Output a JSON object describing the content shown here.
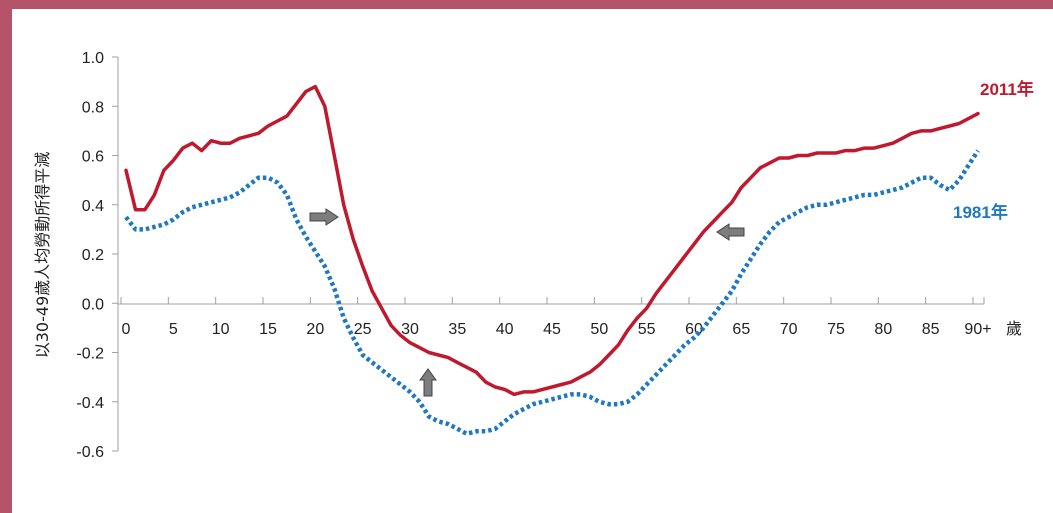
{
  "chart_data": {
    "type": "line",
    "ylabel": "以30-49歲人均勞動所得平減",
    "xlabel": "歲",
    "ylim": [
      -0.6,
      1.0
    ],
    "yticks": [
      "1.0",
      "0.8",
      "0.6",
      "0.4",
      "0.2",
      "0.0",
      "-0.2",
      "-0.4",
      "-0.6"
    ],
    "xticks": [
      "0",
      "5",
      "10",
      "15",
      "20",
      "25",
      "30",
      "35",
      "40",
      "45",
      "50",
      "55",
      "60",
      "65",
      "70",
      "75",
      "80",
      "85",
      "90+"
    ],
    "grid": false,
    "annotations": [
      "arrow-right",
      "arrow-up",
      "arrow-left"
    ],
    "series": [
      {
        "name": "2011年",
        "color": "#c0192e",
        "style": "solid",
        "x": [
          0,
          1,
          2,
          3,
          4,
          5,
          6,
          7,
          8,
          9,
          10,
          11,
          12,
          13,
          14,
          15,
          16,
          17,
          18,
          19,
          20,
          21,
          22,
          23,
          24,
          25,
          26,
          27,
          28,
          29,
          30,
          31,
          32,
          33,
          34,
          35,
          36,
          37,
          38,
          39,
          40,
          41,
          42,
          43,
          44,
          45,
          46,
          47,
          48,
          49,
          50,
          51,
          52,
          53,
          54,
          55,
          56,
          57,
          58,
          59,
          60,
          61,
          62,
          63,
          64,
          65,
          66,
          67,
          68,
          69,
          70,
          71,
          72,
          73,
          74,
          75,
          76,
          77,
          78,
          79,
          80,
          81,
          82,
          83,
          84,
          85,
          86,
          87,
          88,
          89,
          90
        ],
        "values": [
          0.54,
          0.38,
          0.38,
          0.44,
          0.54,
          0.58,
          0.63,
          0.65,
          0.62,
          0.66,
          0.65,
          0.65,
          0.67,
          0.68,
          0.69,
          0.72,
          0.74,
          0.76,
          0.81,
          0.86,
          0.88,
          0.8,
          0.6,
          0.4,
          0.26,
          0.15,
          0.05,
          -0.02,
          -0.09,
          -0.13,
          -0.16,
          -0.18,
          -0.2,
          -0.21,
          -0.22,
          -0.24,
          -0.26,
          -0.28,
          -0.32,
          -0.34,
          -0.35,
          -0.37,
          -0.36,
          -0.36,
          -0.35,
          -0.34,
          -0.33,
          -0.32,
          -0.3,
          -0.28,
          -0.25,
          -0.21,
          -0.17,
          -0.11,
          -0.06,
          -0.02,
          0.04,
          0.09,
          0.14,
          0.19,
          0.24,
          0.29,
          0.33,
          0.37,
          0.41,
          0.47,
          0.51,
          0.55,
          0.57,
          0.59,
          0.59,
          0.6,
          0.6,
          0.61,
          0.61,
          0.61,
          0.62,
          0.62,
          0.63,
          0.63,
          0.64,
          0.65,
          0.67,
          0.69,
          0.7,
          0.7,
          0.71,
          0.72,
          0.73,
          0.75,
          0.77
        ]
      },
      {
        "name": "1981年",
        "color": "#1f78c1",
        "style": "dotted",
        "x": [
          0,
          1,
          2,
          3,
          4,
          5,
          6,
          7,
          8,
          9,
          10,
          11,
          12,
          13,
          14,
          15,
          16,
          17,
          18,
          19,
          20,
          21,
          22,
          23,
          24,
          25,
          26,
          27,
          28,
          29,
          30,
          31,
          32,
          33,
          34,
          35,
          36,
          37,
          38,
          39,
          40,
          41,
          42,
          43,
          44,
          45,
          46,
          47,
          48,
          49,
          50,
          51,
          52,
          53,
          54,
          55,
          56,
          57,
          58,
          59,
          60,
          61,
          62,
          63,
          64,
          65,
          66,
          67,
          68,
          69,
          70,
          71,
          72,
          73,
          74,
          75,
          76,
          77,
          78,
          79,
          80,
          81,
          82,
          83,
          84,
          85,
          86,
          87,
          88,
          89,
          90
        ],
        "values": [
          0.35,
          0.3,
          0.3,
          0.31,
          0.32,
          0.34,
          0.37,
          0.39,
          0.4,
          0.41,
          0.42,
          0.43,
          0.45,
          0.48,
          0.51,
          0.51,
          0.49,
          0.44,
          0.34,
          0.27,
          0.21,
          0.15,
          0.06,
          -0.06,
          -0.14,
          -0.21,
          -0.24,
          -0.27,
          -0.3,
          -0.33,
          -0.36,
          -0.4,
          -0.46,
          -0.48,
          -0.49,
          -0.51,
          -0.53,
          -0.52,
          -0.52,
          -0.51,
          -0.48,
          -0.45,
          -0.43,
          -0.41,
          -0.4,
          -0.39,
          -0.38,
          -0.37,
          -0.37,
          -0.38,
          -0.4,
          -0.41,
          -0.41,
          -0.4,
          -0.37,
          -0.33,
          -0.29,
          -0.25,
          -0.21,
          -0.17,
          -0.14,
          -0.1,
          -0.05,
          0.0,
          0.05,
          0.12,
          0.18,
          0.24,
          0.29,
          0.33,
          0.35,
          0.37,
          0.39,
          0.4,
          0.4,
          0.41,
          0.42,
          0.43,
          0.44,
          0.44,
          0.45,
          0.46,
          0.47,
          0.49,
          0.51,
          0.51,
          0.48,
          0.46,
          0.5,
          0.56,
          0.62
        ]
      }
    ]
  }
}
